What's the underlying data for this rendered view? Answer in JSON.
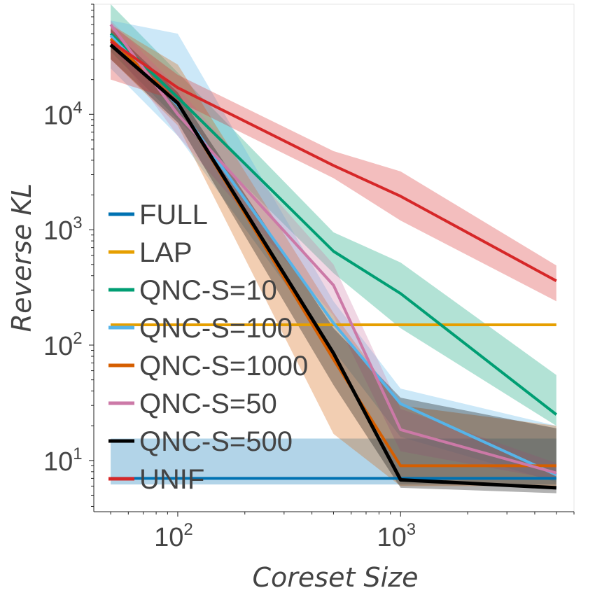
{
  "chart_data": {
    "type": "line",
    "title": "",
    "xlabel": "Coreset Size",
    "ylabel": "Reverse KL",
    "xscale": "log",
    "yscale": "log",
    "xlim": [
      42,
      6000
    ],
    "ylim": [
      3.6,
      90000
    ],
    "legend_position": "left",
    "x": [
      50,
      100,
      500,
      1000,
      5000
    ],
    "x_ticks": [
      {
        "base": "10",
        "exp": "2",
        "value": 100
      },
      {
        "base": "10",
        "exp": "3",
        "value": 1000
      }
    ],
    "y_ticks": [
      {
        "base": "10",
        "exp": "1",
        "value": 10
      },
      {
        "base": "10",
        "exp": "2",
        "value": 100
      },
      {
        "base": "10",
        "exp": "3",
        "value": 1000
      },
      {
        "base": "10",
        "exp": "4",
        "value": 10000
      }
    ],
    "series": [
      {
        "name": "FULL",
        "color": "#0072b2",
        "x": [
          50,
          5000
        ],
        "values": [
          7.0,
          7.0
        ],
        "lower": [
          6.2,
          6.2
        ],
        "upper": [
          15.5,
          15.5
        ]
      },
      {
        "name": "LAP",
        "color": "#e69f00",
        "x": [
          50,
          5000
        ],
        "values": [
          150,
          150
        ],
        "lower": [],
        "upper": []
      },
      {
        "name": "QNC-S=10",
        "color": "#009e73",
        "x": [
          50,
          100,
          500,
          1000,
          5000
        ],
        "values": [
          50000,
          14000,
          650,
          280,
          25
        ],
        "lower": [
          35000,
          9000,
          420,
          140,
          20
        ],
        "upper": [
          90000,
          23000,
          950,
          520,
          55
        ]
      },
      {
        "name": "QNC-S=100",
        "color": "#56b4e9",
        "x": [
          50,
          100,
          500,
          1000,
          5000
        ],
        "values": [
          48000,
          12000,
          155,
          31,
          7.5
        ],
        "lower": [
          25000,
          6500,
          90,
          16,
          6.5
        ],
        "upper": [
          65000,
          50000,
          240,
          42,
          20
        ]
      },
      {
        "name": "QNC-S=1000",
        "color": "#d55e00",
        "x": [
          50,
          100,
          500,
          1000,
          5000
        ],
        "values": [
          45000,
          12500,
          75,
          9,
          9
        ],
        "lower": [
          30000,
          8000,
          17,
          6.0,
          6.0
        ],
        "upper": [
          60000,
          27000,
          190,
          30,
          20
        ]
      },
      {
        "name": "QNC-S=50",
        "color": "#cc79a7",
        "x": [
          50,
          100,
          500,
          1000,
          5000
        ],
        "values": [
          60000,
          10000,
          330,
          18.5,
          7.8
        ],
        "lower": [
          40000,
          6500,
          180,
          12,
          6.8
        ],
        "upper": [
          65000,
          17000,
          500,
          28,
          9.5
        ]
      },
      {
        "name": "QNC-S=500",
        "color": "#000000",
        "x": [
          50,
          100,
          500,
          1000,
          5000
        ],
        "values": [
          40000,
          12500,
          85,
          6.8,
          5.8
        ],
        "lower": [
          30000,
          8500,
          45,
          5.8,
          5.2
        ],
        "upper": [
          55000,
          15500,
          140,
          35,
          19
        ]
      },
      {
        "name": "UNIF",
        "color": "#d62728",
        "x": [
          50,
          100,
          500,
          1000,
          5000
        ],
        "values": [
          43000,
          17000,
          3600,
          1950,
          360
        ],
        "lower": [
          20000,
          13000,
          2800,
          1200,
          240
        ],
        "upper": [
          60000,
          22000,
          4800,
          3200,
          490
        ]
      }
    ]
  }
}
